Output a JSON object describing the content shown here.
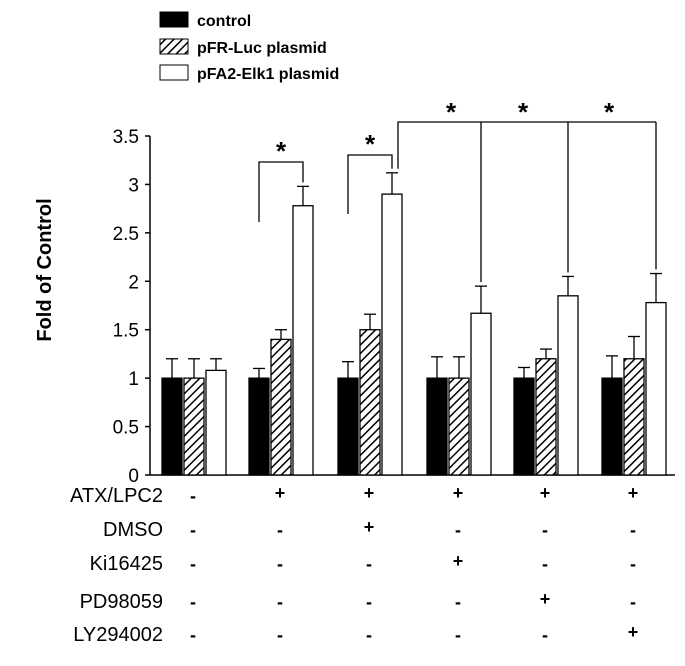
{
  "chart_data": {
    "type": "bar",
    "ylabel": "Fold of Control",
    "ylim": [
      0,
      3.5
    ],
    "yticks": [
      "0",
      "0.5",
      "1",
      "1.5",
      "2",
      "2.5",
      "3",
      "3.5"
    ],
    "grid": false,
    "legend_position": "top-left",
    "series": [
      {
        "name": "control",
        "fill": "solid-black",
        "values": [
          1.0,
          1.0,
          1.0,
          1.0,
          1.0,
          1.0
        ],
        "errors": [
          0.2,
          0.1,
          0.17,
          0.22,
          0.11,
          0.23
        ]
      },
      {
        "name": "pFR-Luc plasmid",
        "fill": "diagonal-hatch",
        "values": [
          1.0,
          1.4,
          1.5,
          1.0,
          1.2,
          1.2
        ],
        "errors": [
          0.2,
          0.1,
          0.16,
          0.22,
          0.1,
          0.23
        ]
      },
      {
        "name": "pFA2-Elk1 plasmid",
        "fill": "white",
        "values": [
          1.08,
          2.78,
          2.9,
          1.67,
          1.85,
          1.78
        ],
        "errors": [
          0.12,
          0.2,
          0.22,
          0.28,
          0.2,
          0.3
        ]
      }
    ],
    "treatments": [
      {
        "label": "ATX/LPC2",
        "signs": [
          "-",
          "+",
          "+",
          "+",
          "+",
          "+"
        ]
      },
      {
        "label": "DMSO",
        "signs": [
          "-",
          "-",
          "+",
          "-",
          "-",
          "-"
        ]
      },
      {
        "label": "Ki16425",
        "signs": [
          "-",
          "-",
          "-",
          "+",
          "-",
          "-"
        ]
      },
      {
        "label": "PD98059",
        "signs": [
          "-",
          "-",
          "-",
          "-",
          "+",
          "-"
        ]
      },
      {
        "label": "LY294002",
        "signs": [
          "-",
          "-",
          "-",
          "-",
          "-",
          "+"
        ]
      }
    ],
    "significance": [
      {
        "label": "*",
        "compares": "group 2: control vs pFA2-Elk1 plasmid"
      },
      {
        "label": "*",
        "compares": "group 3: control vs pFA2-Elk1 plasmid"
      },
      {
        "label": "*",
        "compares": "group 3 vs group 4 (pFA2-Elk1 plasmid)"
      },
      {
        "label": "*",
        "compares": "group 3 vs group 5 (pFA2-Elk1 plasmid)"
      },
      {
        "label": "*",
        "compares": "group 3 vs group 6 (pFA2-Elk1 plasmid)"
      }
    ]
  }
}
